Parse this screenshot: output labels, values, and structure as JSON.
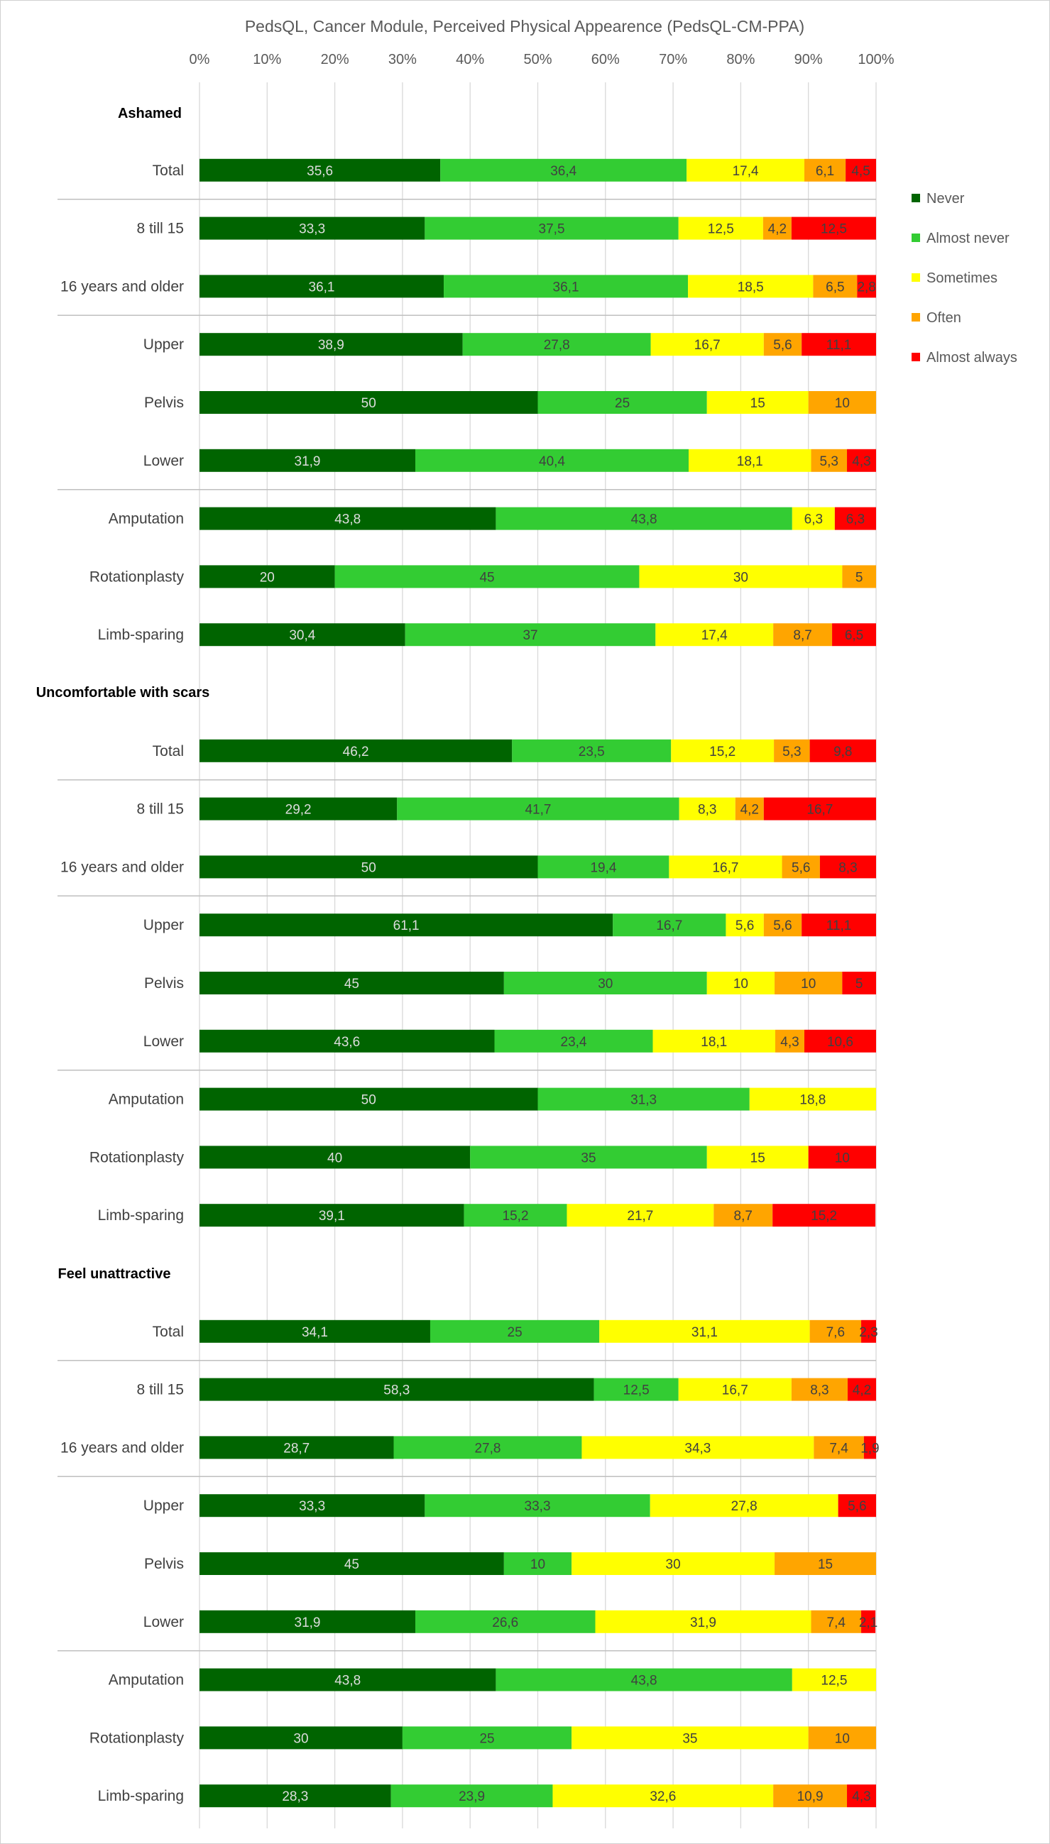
{
  "chart_data": {
    "type": "bar",
    "orientation": "horizontal",
    "stacked": true,
    "title": "PedsQL, Cancer Module, Perceived Physical Appearence (PedsQL-CM-PPA)",
    "x_ticks": [
      "0%",
      "10%",
      "20%",
      "30%",
      "40%",
      "50%",
      "60%",
      "70%",
      "80%",
      "90%",
      "100%"
    ],
    "xlim": [
      0,
      100
    ],
    "grid": true,
    "legend_position": "right",
    "series": [
      {
        "name": "Never",
        "color": "#006400",
        "label_color": "#dddddd"
      },
      {
        "name": "Almost never",
        "color": "#33cc33",
        "label_color": "#404040"
      },
      {
        "name": "Sometimes",
        "color": "#ffff00",
        "label_color": "#404040"
      },
      {
        "name": "Often",
        "color": "#ffa500",
        "label_color": "#404040"
      },
      {
        "name": "Almost always",
        "color": "#ff0000",
        "label_color": "#404040"
      }
    ],
    "groups": [
      {
        "label": "Ashamed",
        "rows": [
          {
            "label": "Total",
            "values": [
              "35,6",
              "36,4",
              "17,4",
              "6,1",
              "4,5"
            ]
          },
          {
            "label": "8 till 15",
            "values": [
              "33,3",
              "37,5",
              "12,5",
              "4,2",
              "12,5"
            ]
          },
          {
            "label": "16 years and older",
            "values": [
              "36,1",
              "36,1",
              "18,5",
              "6,5",
              "2,8"
            ]
          },
          {
            "label": "Upper",
            "values": [
              "38,9",
              "27,8",
              "16,7",
              "5,6",
              "11,1"
            ]
          },
          {
            "label": "Pelvis",
            "values": [
              "50",
              "25",
              "15",
              "10",
              ""
            ]
          },
          {
            "label": "Lower",
            "values": [
              "31,9",
              "40,4",
              "18,1",
              "5,3",
              "4,3"
            ]
          },
          {
            "label": "Amputation",
            "values": [
              "43,8",
              "43,8",
              "6,3",
              "",
              "6,3"
            ]
          },
          {
            "label": "Rotationplasty",
            "values": [
              "20",
              "45",
              "30",
              "5",
              ""
            ]
          },
          {
            "label": "Limb-sparing",
            "values": [
              "30,4",
              "37",
              "17,4",
              "8,7",
              "6,5"
            ]
          }
        ]
      },
      {
        "label": "Uncomfortable with scars",
        "rows": [
          {
            "label": "Total",
            "values": [
              "46,2",
              "23,5",
              "15,2",
              "5,3",
              "9,8"
            ]
          },
          {
            "label": "8 till 15",
            "values": [
              "29,2",
              "41,7",
              "8,3",
              "4,2",
              "16,7"
            ]
          },
          {
            "label": "16 years and older",
            "values": [
              "50",
              "19,4",
              "16,7",
              "5,6",
              "8,3"
            ]
          },
          {
            "label": "Upper",
            "values": [
              "61,1",
              "16,7",
              "5,6",
              "5,6",
              "11,1"
            ]
          },
          {
            "label": "Pelvis",
            "values": [
              "45",
              "30",
              "10",
              "10",
              "5"
            ]
          },
          {
            "label": "Lower",
            "values": [
              "43,6",
              "23,4",
              "18,1",
              "4,3",
              "10,6"
            ]
          },
          {
            "label": "Amputation",
            "values": [
              "50",
              "31,3",
              "18,8",
              "",
              ""
            ]
          },
          {
            "label": "Rotationplasty",
            "values": [
              "40",
              "35",
              "15",
              "",
              "10"
            ]
          },
          {
            "label": "Limb-sparing",
            "values": [
              "39,1",
              "15,2",
              "21,7",
              "8,7",
              "15,2"
            ]
          }
        ]
      },
      {
        "label": "Feel unattractive",
        "rows": [
          {
            "label": "Total",
            "values": [
              "34,1",
              "25",
              "31,1",
              "7,6",
              "2,3"
            ]
          },
          {
            "label": "8 till 15",
            "values": [
              "58,3",
              "12,5",
              "16,7",
              "8,3",
              "4,2"
            ]
          },
          {
            "label": "16 years and older",
            "values": [
              "28,7",
              "27,8",
              "34,3",
              "7,4",
              "1,9"
            ]
          },
          {
            "label": "Upper",
            "values": [
              "33,3",
              "33,3",
              "27,8",
              "",
              "5,6"
            ]
          },
          {
            "label": "Pelvis",
            "values": [
              "45",
              "10",
              "30",
              "15",
              ""
            ]
          },
          {
            "label": "Lower",
            "values": [
              "31,9",
              "26,6",
              "31,9",
              "7,4",
              "2,1"
            ]
          },
          {
            "label": "Amputation",
            "values": [
              "43,8",
              "43,8",
              "12,5",
              "",
              ""
            ]
          },
          {
            "label": "Rotationplasty",
            "values": [
              "30",
              "25",
              "35",
              "10",
              ""
            ]
          },
          {
            "label": "Limb-sparing",
            "values": [
              "28,3",
              "23,9",
              "32,6",
              "10,9",
              "4,3"
            ]
          }
        ]
      }
    ]
  }
}
